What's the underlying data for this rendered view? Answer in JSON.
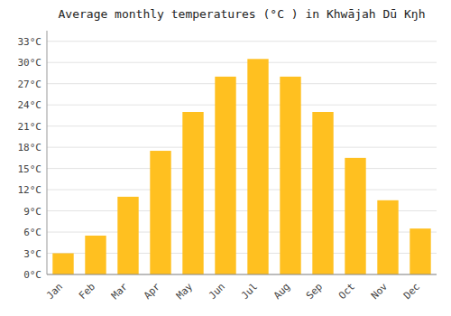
{
  "chart_data": {
    "type": "bar",
    "title": "Average monthly temperatures (°C ) in Khwājah Dū Kŋh",
    "categories": [
      "Jan",
      "Feb",
      "Mar",
      "Apr",
      "May",
      "Jun",
      "Jul",
      "Aug",
      "Sep",
      "Oct",
      "Nov",
      "Dec"
    ],
    "values": [
      3,
      5.5,
      11,
      17.5,
      23,
      28,
      30.5,
      28,
      23,
      16.5,
      10.5,
      6.5
    ],
    "color": "#FFC020",
    "ylim": [
      0,
      34.5
    ],
    "yticks": [
      {
        "value": 0,
        "label": "0°C"
      },
      {
        "value": 3,
        "label": "3°C"
      },
      {
        "value": 6,
        "label": "6°C"
      },
      {
        "value": 9,
        "label": "9°C"
      },
      {
        "value": 12,
        "label": "12°C"
      },
      {
        "value": 15,
        "label": "15°C"
      },
      {
        "value": 18,
        "label": "18°C"
      },
      {
        "value": 21,
        "label": "21°C"
      },
      {
        "value": 24,
        "label": "24°C"
      },
      {
        "value": 27,
        "label": "27°C"
      },
      {
        "value": 30,
        "label": "30°C"
      },
      {
        "value": 33,
        "label": "33°C"
      }
    ],
    "grid": true
  }
}
